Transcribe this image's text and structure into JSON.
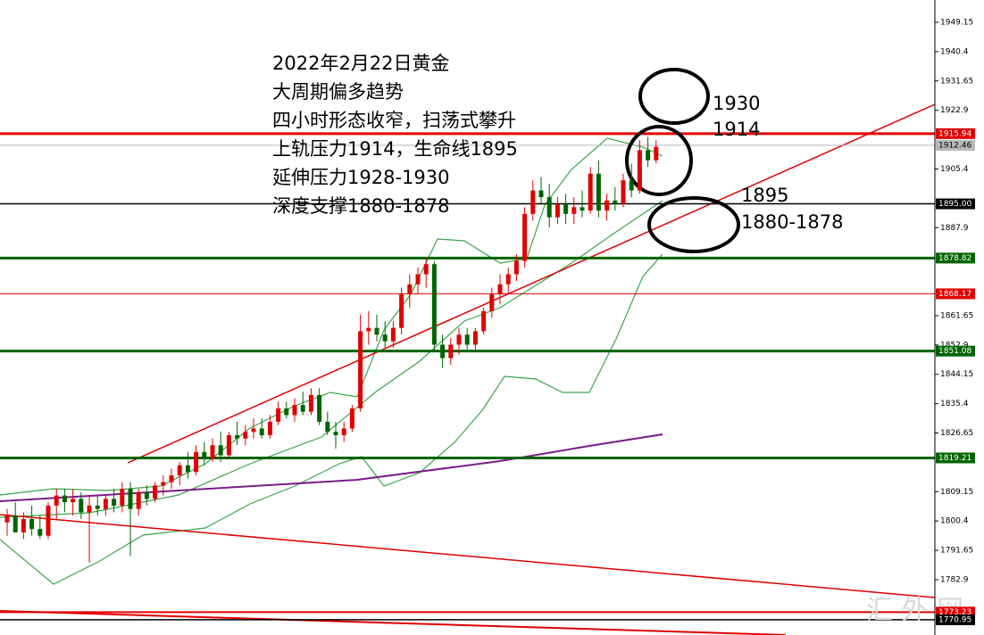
{
  "chart_data": {
    "type": "candlestick",
    "annotations": [
      "2022年2月22日黄金",
      "大周期偏多趋势",
      "四小时形态收窄，扫荡式攀升",
      "上轨压力1914，生命线1895",
      "延伸压力1928-1930",
      "深度支撑1880-1878"
    ],
    "side_notes": [
      "1930",
      "1914",
      "1895",
      "1880-1878"
    ],
    "watermark": "汇 外 网",
    "ylim": [
      1766.4,
      1955.8
    ],
    "yticks": [
      1949.15,
      1940.4,
      1931.65,
      1922.9,
      1905.4,
      1887.9,
      1861.65,
      1852.9,
      1844.15,
      1835.4,
      1826.65,
      1809.15,
      1800.4,
      1791.65,
      1782.9
    ],
    "levels": [
      {
        "value": 1915.94,
        "color": "#e00000"
      },
      {
        "value": 1912.46,
        "color": "#b8b8b8"
      },
      {
        "value": 1895,
        "label": "1895.00",
        "color": "#000000"
      },
      {
        "value": 1878.82,
        "color": "#006400"
      },
      {
        "value": 1868.17,
        "color": "#e00000"
      },
      {
        "value": 1851.08,
        "color": "#006400"
      },
      {
        "value": 1819.21,
        "color": "#006400"
      },
      {
        "value": 1773.23,
        "color": "#e00000"
      },
      {
        "value": 1770.95,
        "color": "#000000"
      }
    ],
    "up_color": "#e00000",
    "down_color": "#006400",
    "candles": {
      "open": [
        1800,
        1802,
        1797,
        1801,
        1798,
        1796,
        1805,
        1808,
        1806,
        1807,
        1803,
        1805,
        1804,
        1807,
        1805,
        1810,
        1804,
        1809,
        1807,
        1811,
        1812,
        1814,
        1817,
        1815,
        1821,
        1819,
        1823,
        1820,
        1826,
        1825,
        1827,
        1828,
        1826,
        1830,
        1834,
        1832,
        1835,
        1833,
        1838,
        1830,
        1827,
        1826,
        1828,
        1834,
        1857,
        1858,
        1856,
        1854,
        1858,
        1868,
        1871,
        1874,
        1877,
        1853,
        1849,
        1853,
        1856,
        1853,
        1857,
        1863,
        1868,
        1871,
        1874,
        1878,
        1892,
        1899,
        1897,
        1891,
        1895,
        1892,
        1894,
        1893,
        1904,
        1893,
        1896,
        1895,
        1902,
        1899,
        1911,
        1908
      ],
      "high": [
        1804,
        1806,
        1803,
        1805,
        1802,
        1806,
        1810,
        1810,
        1810,
        1809,
        1808,
        1808,
        1808,
        1810,
        1812,
        1812,
        1810,
        1811,
        1812,
        1814,
        1816,
        1818,
        1821,
        1823,
        1824,
        1825,
        1827,
        1827,
        1830,
        1829,
        1831,
        1831,
        1832,
        1836,
        1836,
        1837,
        1839,
        1840,
        1840,
        1833,
        1830,
        1830,
        1835,
        1862,
        1863,
        1862,
        1860,
        1860,
        1870,
        1874,
        1876,
        1879,
        1878,
        1856,
        1855,
        1858,
        1858,
        1858,
        1864,
        1870,
        1874,
        1876,
        1880,
        1894,
        1902,
        1903,
        1901,
        1897,
        1898,
        1897,
        1899,
        1906,
        1908,
        1898,
        1900,
        1904,
        1907,
        1914,
        1915,
        1914
      ],
      "low": [
        1796,
        1797,
        1795,
        1796,
        1795,
        1795,
        1801,
        1803,
        1802,
        1801,
        1788,
        1802,
        1802,
        1803,
        1803,
        1790,
        1802,
        1805,
        1806,
        1808,
        1810,
        1811,
        1813,
        1814,
        1817,
        1818,
        1818,
        1819,
        1823,
        1823,
        1825,
        1825,
        1825,
        1829,
        1831,
        1830,
        1832,
        1832,
        1829,
        1826,
        1822,
        1824,
        1827,
        1833,
        1853,
        1854,
        1852,
        1852,
        1856,
        1864,
        1868,
        1870,
        1851,
        1846,
        1847,
        1850,
        1851,
        1851,
        1856,
        1861,
        1865,
        1868,
        1872,
        1876,
        1890,
        1895,
        1888,
        1889,
        1889,
        1889,
        1891,
        1892,
        1891,
        1890,
        1893,
        1894,
        1897,
        1898,
        1906,
        1907
      ],
      "close": [
        1802,
        1797,
        1801,
        1798,
        1796,
        1805,
        1808,
        1806,
        1807,
        1803,
        1805,
        1804,
        1807,
        1805,
        1810,
        1804,
        1809,
        1807,
        1811,
        1812,
        1814,
        1817,
        1815,
        1821,
        1819,
        1823,
        1820,
        1826,
        1825,
        1827,
        1828,
        1826,
        1830,
        1834,
        1832,
        1835,
        1833,
        1838,
        1830,
        1827,
        1826,
        1828,
        1834,
        1857,
        1858,
        1856,
        1854,
        1858,
        1868,
        1871,
        1874,
        1877,
        1853,
        1849,
        1853,
        1856,
        1853,
        1857,
        1863,
        1868,
        1871,
        1874,
        1878,
        1892,
        1899,
        1897,
        1891,
        1895,
        1892,
        1894,
        1893,
        1904,
        1893,
        1896,
        1895,
        1902,
        1899,
        1911,
        1908,
        1912
      ]
    }
  }
}
